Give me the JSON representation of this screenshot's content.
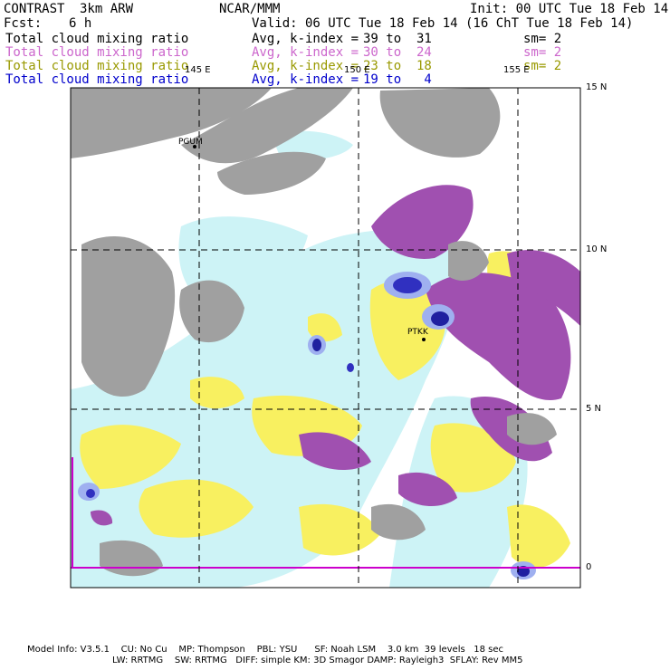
{
  "header": {
    "model": "CONTRAST",
    "resolution": "3km ARW",
    "org": "NCAR/MMM",
    "init": "Init: 00 UTC Tue 18 Feb 14",
    "fcst_label": "Fcst:",
    "fcst_value": "6 h",
    "valid": "Valid: 06 UTC Tue 18 Feb 14 (16 ChT Tue 18 Feb 14)"
  },
  "fields": [
    {
      "name": "Total cloud mixing ratio",
      "avg": "Avg, k-index =",
      "range": "39 to  31",
      "sm": "sm= 2",
      "color": "#000000"
    },
    {
      "name": "Total cloud mixing ratio",
      "avg": "Avg, k-index =",
      "range": "30 to  24",
      "sm": "sm= 2",
      "color": "#cc66cc"
    },
    {
      "name": "Total cloud mixing ratio",
      "avg": "Avg, k-index =",
      "range": "23 to  18",
      "sm": "sm= 2",
      "color": "#999900"
    },
    {
      "name": "Total cloud mixing ratio",
      "avg": "Avg, k-index =",
      "range": "19 to   4",
      "sm": "",
      "color": "#0000cc"
    }
  ],
  "axes": {
    "lon_labels": [
      "145 E",
      "150 E",
      "155 E"
    ],
    "lat_labels": [
      "15 N",
      "10 N",
      "5 N",
      "0"
    ]
  },
  "stations": [
    "PGUM",
    "PTKK"
  ],
  "footer": {
    "line1": "Model Info: V3.5.1    CU: No Cu    MP: Thompson    PBL: YSU      SF: Noah LSM    3.0 km  39 levels   18 sec",
    "line2": "LW: RRTMG    SW: RRTMG   DIFF: simple KM: 3D Smagor DAMP: Rayleigh3  SFLAY: Rev MM5"
  },
  "colors": {
    "high_cloud": "#a0a0a0",
    "mid_cloud": "#a050b0",
    "low_cloud": "#f8f060",
    "thin_cloud": "#cdf3f6",
    "heavy_cloud": "#3030c0"
  }
}
